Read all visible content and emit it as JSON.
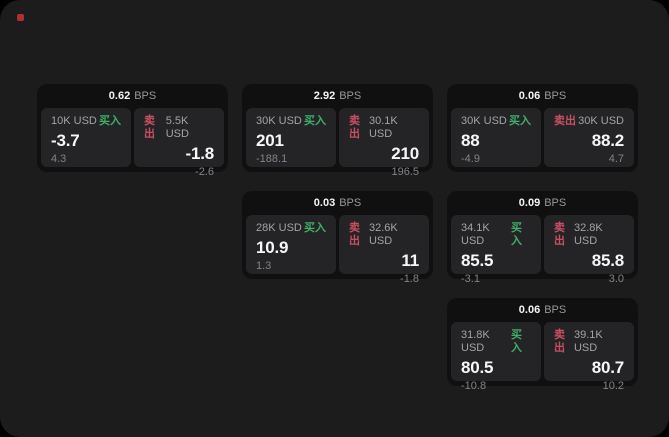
{
  "window": {
    "background": "#1c1c1d",
    "outer_background": "#000000",
    "status_dot_color": "#b03030"
  },
  "labels": {
    "bps": "BPS",
    "buy": "买入",
    "sell": "卖出"
  },
  "colors": {
    "buy_green": "#3fae6a",
    "sell_red": "#c84f62",
    "card_bg": "#101011",
    "panel_bg": "#242427",
    "primary_text": "#f5f5f5",
    "muted_text": "#9a9a9e"
  },
  "cards": [
    {
      "bps": "0.62",
      "buy": {
        "amount": "10K USD",
        "price": "-3.7",
        "delta": "4.3"
      },
      "sell": {
        "amount": "5.5K USD",
        "price": "-1.8",
        "delta": "-2.6"
      }
    },
    {
      "bps": "2.92",
      "buy": {
        "amount": "30K USD",
        "price": "201",
        "delta": "-188.1"
      },
      "sell": {
        "amount": "30.1K USD",
        "price": "210",
        "delta": "196.5"
      }
    },
    {
      "bps": "0.06",
      "buy": {
        "amount": "30K USD",
        "price": "88",
        "delta": "-4.9"
      },
      "sell": {
        "amount": "30K USD",
        "price": "88.2",
        "delta": "4.7"
      }
    },
    {
      "bps": "0.03",
      "buy": {
        "amount": "28K USD",
        "price": "10.9",
        "delta": "1.3"
      },
      "sell": {
        "amount": "32.6K USD",
        "price": "11",
        "delta": "-1.8"
      }
    },
    {
      "bps": "0.09",
      "buy": {
        "amount": "34.1K USD",
        "price": "85.5",
        "delta": "-3.1"
      },
      "sell": {
        "amount": "32.8K USD",
        "price": "85.8",
        "delta": "3.0"
      }
    },
    {
      "bps": "0.06",
      "buy": {
        "amount": "31.8K USD",
        "price": "80.5",
        "delta": "-10.8"
      },
      "sell": {
        "amount": "39.1K USD",
        "price": "80.7",
        "delta": "10.2"
      }
    }
  ]
}
